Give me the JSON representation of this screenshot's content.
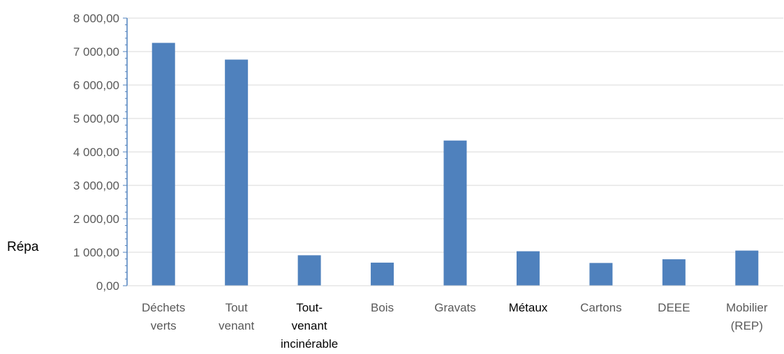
{
  "chart_data": {
    "type": "bar",
    "categories": [
      "Déchets\nverts",
      "Tout\nvenant",
      "Tout-\nvenant\nincinérable",
      "Bois",
      "Gravats",
      "Métaux",
      "Cartons",
      "DEEE",
      "Mobilier\n(REP)"
    ],
    "category_colors": [
      "#595959",
      "#595959",
      "#000000",
      "#595959",
      "#595959",
      "#000000",
      "#595959",
      "#595959",
      "#595959"
    ],
    "values": [
      7260,
      6760,
      910,
      690,
      4340,
      1030,
      680,
      790,
      1050
    ],
    "ylim": [
      0,
      8000
    ],
    "yticks": [
      0,
      1000,
      2000,
      3000,
      4000,
      5000,
      6000,
      7000,
      8000
    ],
    "ytick_labels": [
      "0,00",
      "1 000,00",
      "2 000,00",
      "3 000,00",
      "4 000,00",
      "5 000,00",
      "6 000,00",
      "7 000,00",
      "8 000,00"
    ],
    "grid": true,
    "bar_color": "#4f81bd",
    "grid_color": "#d9d9d9",
    "axis_color": "#4f81bd"
  },
  "side_label": "Répa"
}
